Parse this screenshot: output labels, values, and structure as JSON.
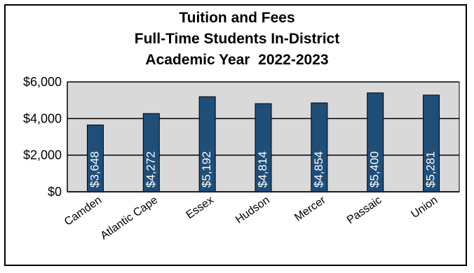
{
  "chart_data": {
    "type": "bar",
    "title_lines": [
      "Tuition and Fees",
      "Full-Time Students In-District",
      "Academic Year  2022-2023"
    ],
    "categories": [
      "Camden",
      "Atlantic Cape",
      "Essex",
      "Hudson",
      "Mercer",
      "Passaic",
      "Union"
    ],
    "values": [
      3648,
      4272,
      5192,
      4814,
      4854,
      5400,
      5281
    ],
    "data_labels": [
      "$3,648",
      "$4,272",
      "$5,192",
      "$4,814",
      "$4,854",
      "$5,400",
      "$5,281"
    ],
    "yticks": [
      {
        "value": 0,
        "label": "$0"
      },
      {
        "value": 2000,
        "label": "$2,000"
      },
      {
        "value": 4000,
        "label": "$4,000"
      },
      {
        "value": 6000,
        "label": "$6,000"
      }
    ],
    "ylim": [
      0,
      6000
    ],
    "grid": true,
    "colors": {
      "bar": "#1f4e79",
      "bar_edge": "#000000",
      "plot_bg": "#d9d9d9",
      "grid": "#000000"
    }
  }
}
